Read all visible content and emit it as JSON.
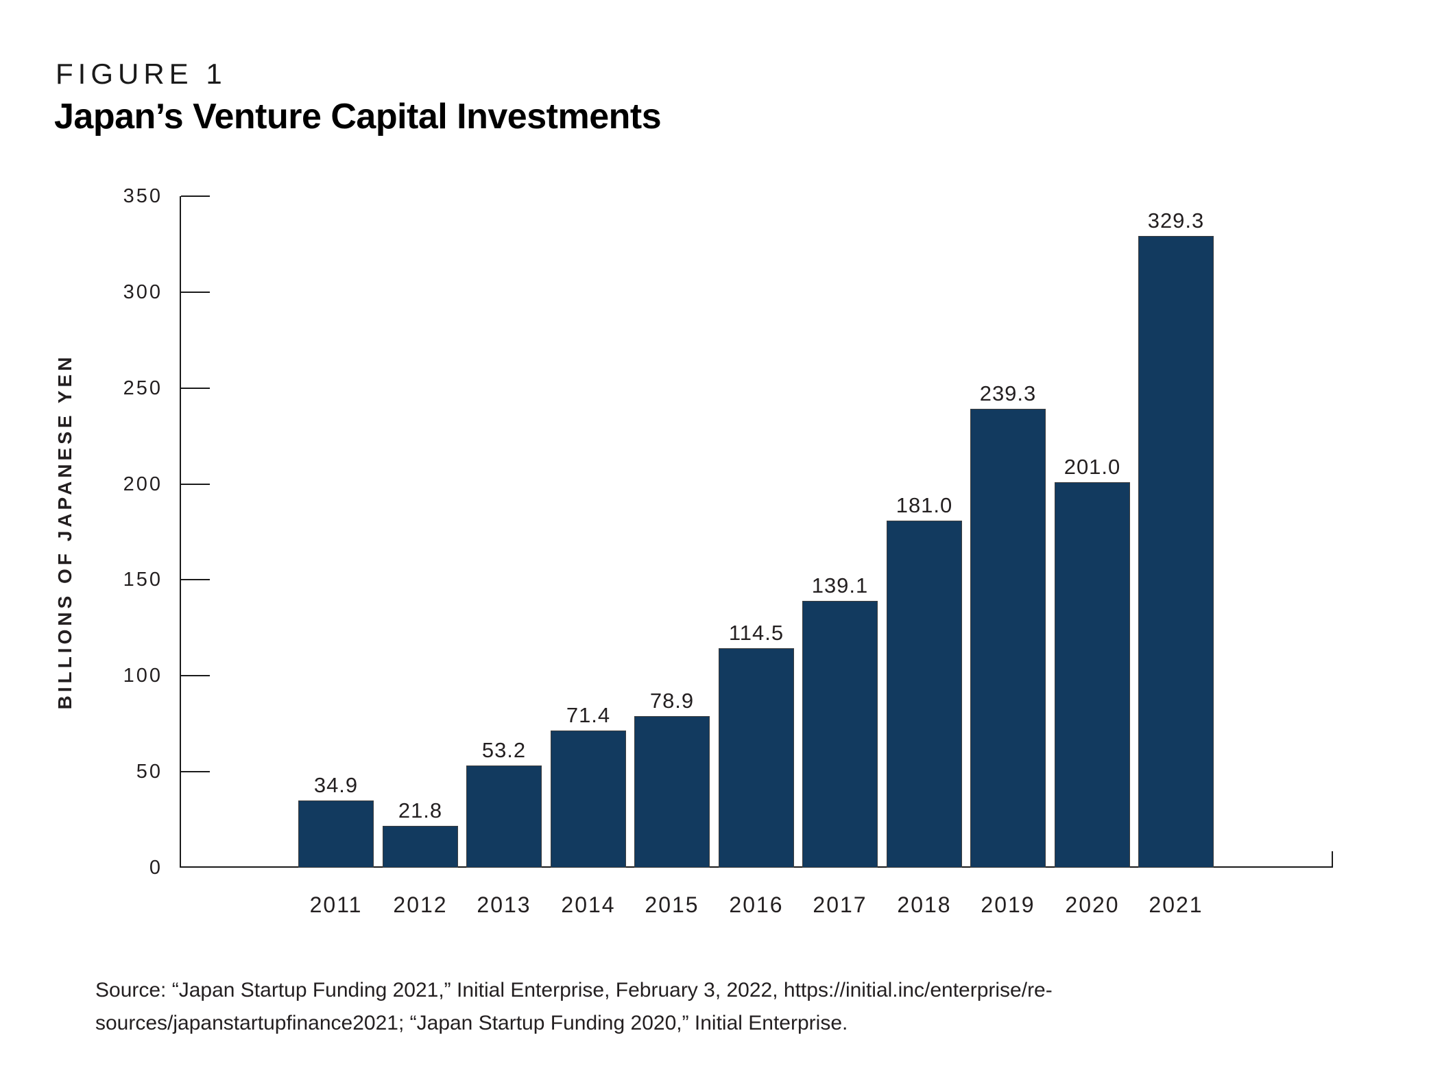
{
  "figure_label": "FIGURE 1",
  "title": "Japan’s Venture Capital Investments",
  "y_axis_title": "BILLIONS OF JAPANESE YEN",
  "source": {
    "line1": "Source: “Japan Startup Funding 2021,” Initial Enterprise, February 3, 2022, https://initial.inc/enterprise/re-",
    "line2": "sources/japanstartupfinance2021; “Japan Startup Funding 2020,” Initial Enterprise."
  },
  "colors": {
    "bar_fill": "#123a5f",
    "bar_border": "#3d3d3d",
    "axis": "#1a1a1a",
    "text": "#231f20"
  },
  "chart_data": {
    "type": "bar",
    "title": "Japan’s Venture Capital Investments",
    "xlabel": "",
    "ylabel": "BILLIONS OF JAPANESE YEN",
    "categories": [
      "2011",
      "2012",
      "2013",
      "2014",
      "2015",
      "2016",
      "2017",
      "2018",
      "2019",
      "2020",
      "2021"
    ],
    "values": [
      34.9,
      21.8,
      53.2,
      71.4,
      78.9,
      114.5,
      139.1,
      181.0,
      239.3,
      201.0,
      329.3
    ],
    "value_labels": [
      "34.9",
      "21.8",
      "53.2",
      "71.4",
      "78.9",
      "114.5",
      "139.1",
      "181.0",
      "239.3",
      "201.0",
      "329.3"
    ],
    "ylim": [
      0,
      350
    ],
    "yticks": [
      0,
      50,
      100,
      150,
      200,
      250,
      300,
      350
    ],
    "grid": false,
    "legend": "none",
    "bar_label_position": "above"
  }
}
